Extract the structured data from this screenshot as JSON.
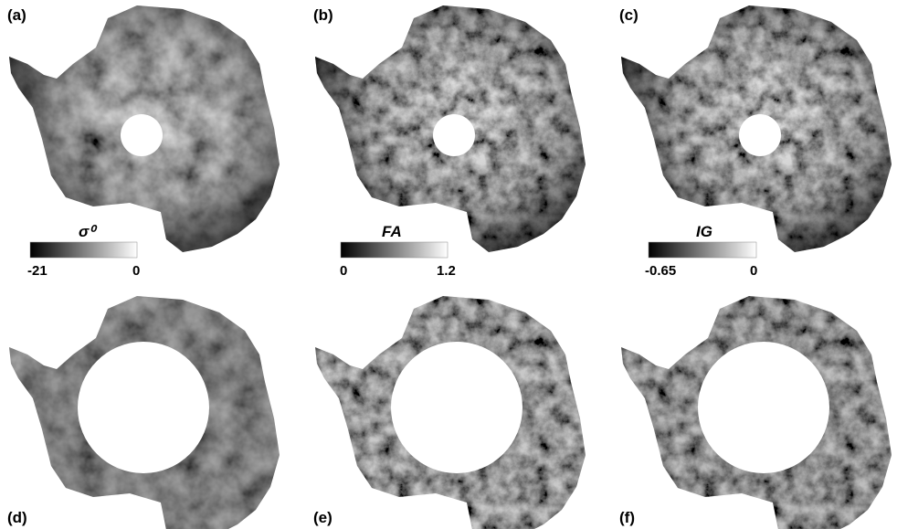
{
  "panels": [
    {
      "label": "(a)"
    },
    {
      "label": "(b)"
    },
    {
      "label": "(c)"
    },
    {
      "label": "(d)"
    },
    {
      "label": "(e)"
    },
    {
      "label": "(f)"
    }
  ],
  "colorbars": [
    {
      "title": "σ⁰",
      "min_label": "-21",
      "max_label": "0"
    },
    {
      "title": "FA",
      "min_label": "0",
      "max_label": "1.2"
    },
    {
      "title": "IG",
      "min_label": "-0.65",
      "max_label": "0"
    }
  ]
}
